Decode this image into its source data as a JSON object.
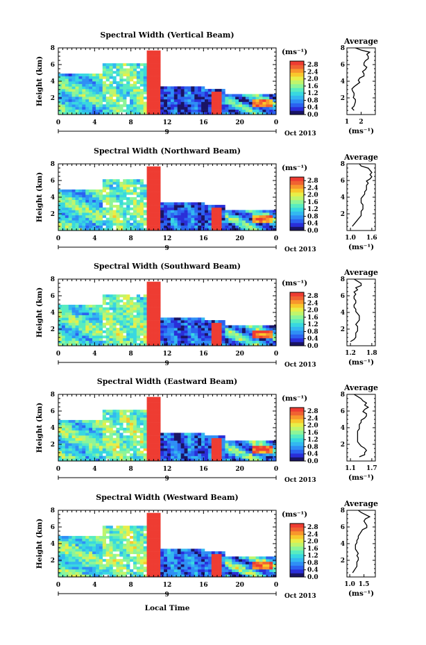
{
  "chart_data": {
    "type": "heatmap",
    "panels": [
      {
        "title": "Spectral Width (Vertical Beam)",
        "profile_xticks": [
          "1",
          "2"
        ],
        "profile_xlim": [
          1,
          3
        ],
        "profile": [
          1.5,
          1.35,
          1.5,
          1.55,
          1.6,
          1.6,
          1.45,
          1.5,
          1.5,
          1.4,
          1.35,
          1.5,
          1.7,
          1.9,
          1.8,
          1.9,
          2.2,
          2.2,
          2.1,
          2.3,
          2.4,
          2.2,
          2.2,
          2.3,
          2.5,
          2.5,
          2.4,
          2.6,
          2.0,
          1.6
        ]
      },
      {
        "title": "Spectral Width (Northward Beam)",
        "profile_xticks": [
          "1.0",
          "1.6"
        ],
        "profile_xlim": [
          0.9,
          1.7
        ],
        "profile": [
          1.05,
          1.1,
          1.15,
          1.2,
          1.25,
          1.3,
          1.3,
          1.3,
          1.35,
          1.35,
          1.35,
          1.3,
          1.3,
          1.3,
          1.35,
          1.4,
          1.4,
          1.45,
          1.45,
          1.45,
          1.5,
          1.45,
          1.55,
          1.6,
          1.55,
          1.6,
          1.55,
          1.5,
          1.3,
          1.25
        ]
      },
      {
        "title": "Spectral Width (Southward Beam)",
        "profile_xticks": [
          "1.2",
          "1.8"
        ],
        "profile_xlim": [
          1.1,
          1.9
        ],
        "profile": [
          1.2,
          1.3,
          1.35,
          1.35,
          1.35,
          1.4,
          1.4,
          1.4,
          1.35,
          1.4,
          1.45,
          1.45,
          1.45,
          1.4,
          1.35,
          1.35,
          1.3,
          1.3,
          1.35,
          1.35,
          1.3,
          1.3,
          1.35,
          1.3,
          1.4,
          1.35,
          1.5,
          1.5,
          1.4,
          1.3
        ]
      },
      {
        "title": "Spectral Width (Eastward Beam)",
        "profile_xticks": [
          "1.1",
          "1.7"
        ],
        "profile_xlim": [
          1.0,
          1.8
        ],
        "profile": [
          1.35,
          1.5,
          1.5,
          1.55,
          1.5,
          1.4,
          1.35,
          1.3,
          1.3,
          1.3,
          1.3,
          1.3,
          1.3,
          1.35,
          1.35,
          1.35,
          1.4,
          1.4,
          1.5,
          1.55,
          1.55,
          1.45,
          1.5,
          1.6,
          1.5,
          1.55,
          1.45,
          1.4,
          1.3,
          1.2
        ]
      },
      {
        "title": "Spectral Width (Westward Beam)",
        "profile_xticks": [
          "1.0",
          "1.5"
        ],
        "profile_xlim": [
          0.9,
          1.9
        ],
        "profile": [
          1.1,
          1.15,
          1.2,
          1.25,
          1.25,
          1.25,
          1.3,
          1.3,
          1.25,
          1.3,
          1.25,
          1.2,
          1.2,
          1.2,
          1.25,
          1.25,
          1.3,
          1.3,
          1.35,
          1.4,
          1.45,
          1.6,
          1.6,
          1.55,
          1.5,
          1.55,
          1.7,
          1.55,
          1.4,
          1.3
        ]
      }
    ],
    "height_range_km": [
      0,
      8
    ],
    "time_range_h": [
      0,
      24
    ],
    "xticks": [
      "0",
      "4",
      "8",
      "12",
      "16",
      "20",
      "0"
    ],
    "yticks": [
      "2",
      "4",
      "6",
      "8"
    ],
    "profile_yticks": [
      "2",
      "4",
      "6",
      "8"
    ],
    "ylabel": "Height (km)",
    "xlabel": "Local Time",
    "date_day": "9",
    "date_month": "Oct 2013",
    "profile_title": "Average",
    "profile_xlabel": "(ms⁻¹)",
    "colorbar": {
      "unit_label": "(ms⁻¹)",
      "ticks": [
        "2.8",
        "2.4",
        "2.0",
        "1.6",
        "1.2",
        "0.8",
        "0.4",
        "0.0"
      ],
      "range": [
        0,
        3.0
      ],
      "colors": [
        "#1a1464",
        "#2a2ed8",
        "#2b62f0",
        "#2f8ff5",
        "#33b8f0",
        "#38d8e0",
        "#58ecc0",
        "#8df598",
        "#c0f56c",
        "#e8ee48",
        "#f8c82c",
        "#f8962c",
        "#f06232",
        "#ee3c32"
      ]
    }
  }
}
